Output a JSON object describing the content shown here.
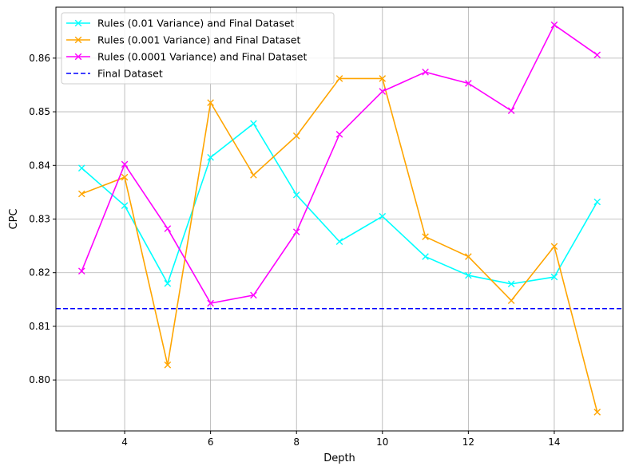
{
  "chart_data": {
    "type": "line",
    "title": "",
    "xlabel": "Depth",
    "ylabel": "CPC",
    "xlim": [
      2.4,
      15.6
    ],
    "ylim": [
      0.7905,
      0.8695
    ],
    "xticks": [
      4,
      6,
      8,
      10,
      12,
      14
    ],
    "yticks": [
      0.8,
      0.81,
      0.82,
      0.83,
      0.84,
      0.85,
      0.86
    ],
    "grid": true,
    "legend_position": "top-left",
    "x": [
      3,
      4,
      5,
      6,
      7,
      8,
      9,
      10,
      11,
      12,
      13,
      14,
      15
    ],
    "series": [
      {
        "name": "Rules (0.01 Variance) and Final Dataset",
        "color": "#00ffff",
        "marker": "x",
        "style": "solid",
        "values": [
          0.8395,
          0.8325,
          0.818,
          0.8415,
          0.8478,
          0.8345,
          0.8258,
          0.8305,
          0.823,
          0.8195,
          0.8179,
          0.8192,
          0.8332
        ]
      },
      {
        "name": "Rules (0.001 Variance) and Final Dataset",
        "color": "#ffa500",
        "marker": "x",
        "style": "solid",
        "values": [
          0.8347,
          0.8378,
          0.8028,
          0.8517,
          0.8382,
          0.8455,
          0.8562,
          0.8562,
          0.8267,
          0.823,
          0.8148,
          0.8249,
          0.794
        ]
      },
      {
        "name": "Rules (0.0001 Variance) and Final Dataset",
        "color": "#ff00ff",
        "marker": "x",
        "style": "solid",
        "values": [
          0.8203,
          0.8402,
          0.8282,
          0.8143,
          0.8158,
          0.8276,
          0.8458,
          0.8538,
          0.8574,
          0.8553,
          0.8502,
          0.8662,
          0.8606
        ]
      }
    ],
    "reference_lines": [
      {
        "name": "Final Dataset",
        "color": "#0000ff",
        "style": "dashed",
        "y": 0.8133
      }
    ]
  }
}
